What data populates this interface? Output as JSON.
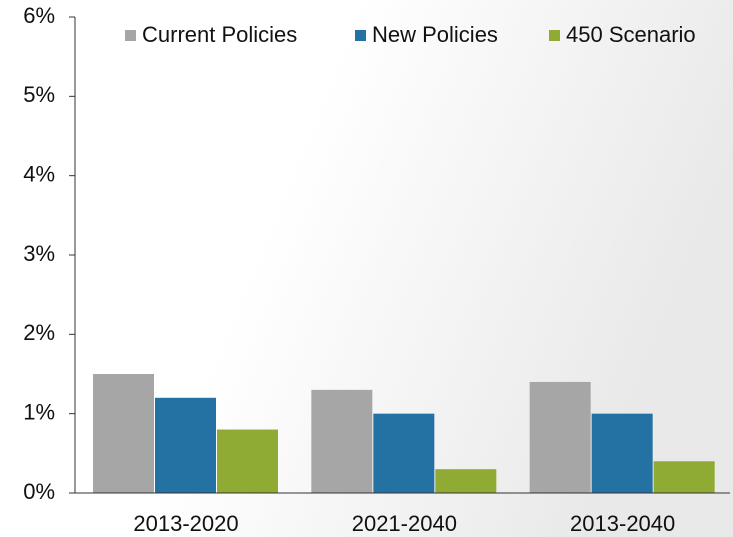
{
  "chart_data": {
    "type": "bar",
    "categories": [
      "2013-2020",
      "2021-2040",
      "2013-2040"
    ],
    "series": [
      {
        "name": "Current Policies",
        "color": "#a6a6a6",
        "values": [
          1.5,
          1.3,
          1.4
        ]
      },
      {
        "name": "New Policies",
        "color": "#2471a3",
        "values": [
          1.2,
          1.0,
          1.0
        ]
      },
      {
        "name": "450 Scenario",
        "color": "#8fab34",
        "values": [
          0.8,
          0.3,
          0.4
        ]
      }
    ],
    "ylim": [
      0,
      6
    ],
    "yticks": [
      {
        "value": 0,
        "label": "0%"
      },
      {
        "value": 1,
        "label": "1%"
      },
      {
        "value": 2,
        "label": "2%"
      },
      {
        "value": 3,
        "label": "3%"
      },
      {
        "value": 4,
        "label": "4%"
      },
      {
        "value": 5,
        "label": "5%"
      },
      {
        "value": 6,
        "label": "6%"
      }
    ],
    "legend": "top"
  }
}
